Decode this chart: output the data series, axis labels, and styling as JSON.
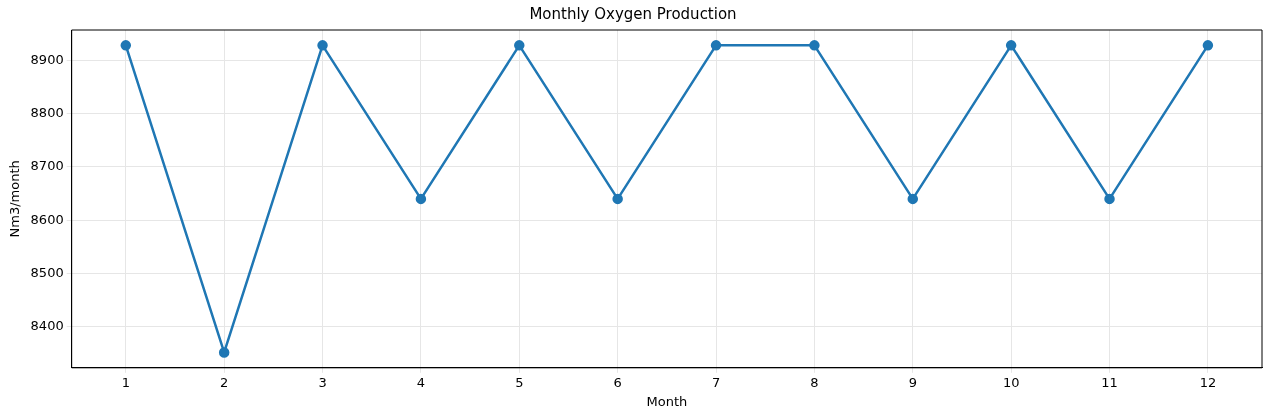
{
  "chart_data": {
    "type": "line",
    "title": "Monthly Oxygen Production",
    "xlabel": "Month",
    "ylabel": "Nm3/month",
    "x": [
      1,
      2,
      3,
      4,
      5,
      6,
      7,
      8,
      9,
      10,
      11,
      12
    ],
    "series": [
      {
        "color": "#1f77b4",
        "values": [
          8928,
          8352,
          8928,
          8640,
          8928,
          8640,
          8928,
          8928,
          8640,
          8928,
          8640,
          8928
        ]
      }
    ],
    "xlim": [
      0.45,
      12.55
    ],
    "xticks": [
      1,
      2,
      3,
      4,
      5,
      6,
      7,
      8,
      9,
      10,
      11,
      12
    ],
    "ylim": [
      8323.2,
      8956.8
    ],
    "yticks": [
      8400,
      8500,
      8600,
      8700,
      8800,
      8900
    ],
    "grid": true,
    "marker": "circle",
    "line_style": "solid"
  }
}
